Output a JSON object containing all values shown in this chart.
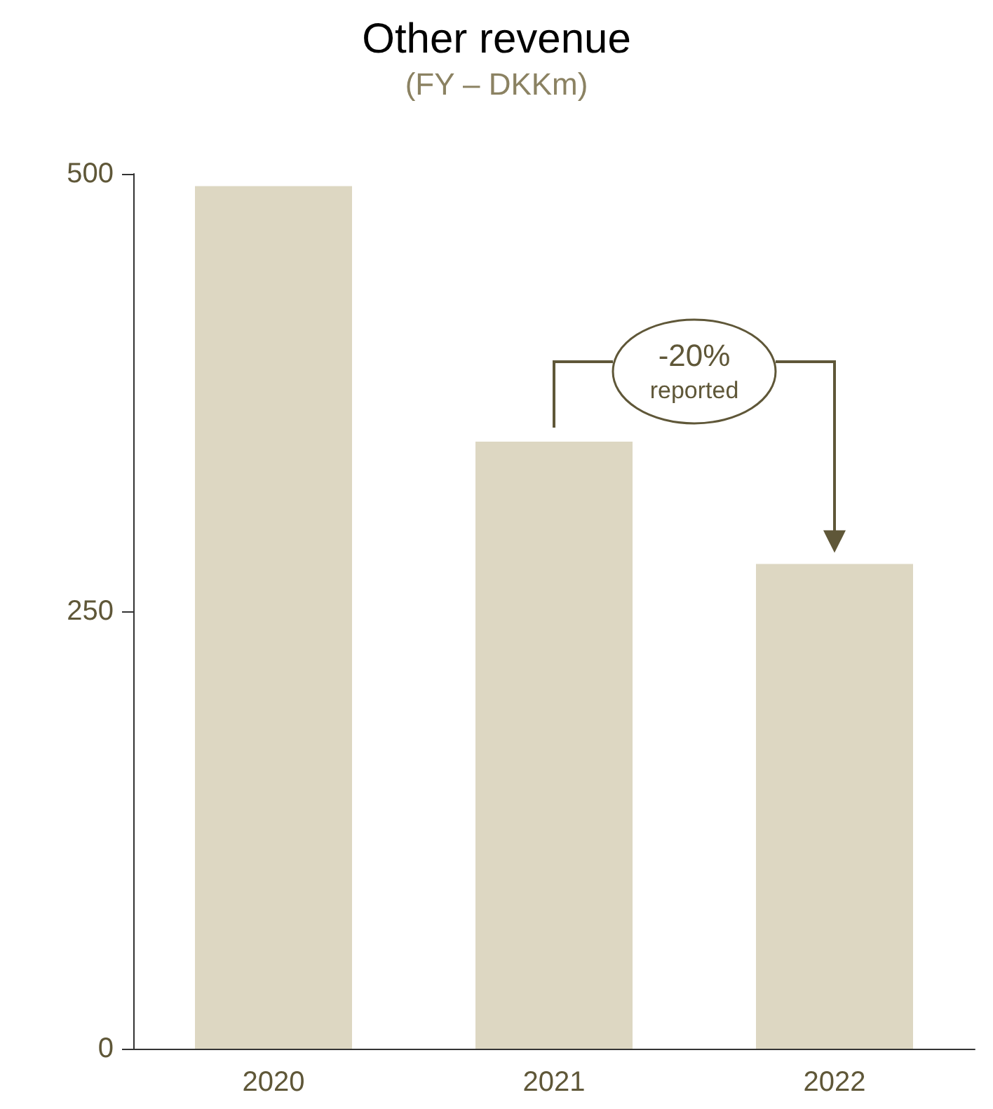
{
  "chart_data": {
    "type": "bar",
    "title": "Other revenue",
    "subtitle": "(FY – DKKm)",
    "categories": [
      "2020",
      "2021",
      "2022"
    ],
    "values": [
      493,
      347,
      277
    ],
    "color": "#ddd7c2",
    "ylim": [
      0,
      500
    ],
    "yticks": [
      0,
      250,
      500
    ],
    "grid": false,
    "annotations": [
      "-20%",
      "reported"
    ]
  }
}
